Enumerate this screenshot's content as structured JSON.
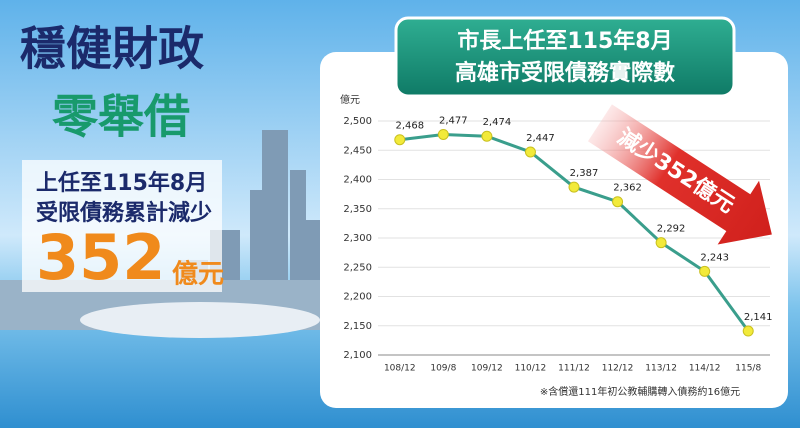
{
  "headline": {
    "line1": "穩健財政",
    "line2": "零舉借",
    "sub1": "上任至115年8月",
    "sub2": "受限債務累計減少",
    "amount": "352",
    "unit": "億元"
  },
  "chart_data": {
    "type": "line",
    "title_lines": [
      "市長上任至115年8月",
      "高雄市受限債務實際數"
    ],
    "y_label": "億元",
    "categories": [
      "108/12",
      "109/8",
      "109/12",
      "110/12",
      "111/12",
      "112/12",
      "113/12",
      "114/12",
      "115/8"
    ],
    "values": [
      2468,
      2477,
      2474,
      2447,
      2387,
      2362,
      2292,
      2243,
      2141
    ],
    "value_labels": [
      "2,468",
      "2,477",
      "2,474",
      "2,447",
      "2,387",
      "2,362",
      "2,292",
      "2,243",
      "2,141"
    ],
    "color": "#3a9e8c",
    "marker_color": "#f2ea3a",
    "ylim": [
      2100,
      2500
    ],
    "yticks": [
      {
        "value": 2100,
        "label": "2,100"
      },
      {
        "value": 2150,
        "label": "2,150"
      },
      {
        "value": 2200,
        "label": "2,200"
      },
      {
        "value": 2250,
        "label": "2,250"
      },
      {
        "value": 2300,
        "label": "2,300"
      },
      {
        "value": 2350,
        "label": "2,350"
      },
      {
        "value": 2400,
        "label": "2,400"
      },
      {
        "value": 2450,
        "label": "2,450"
      },
      {
        "value": 2500,
        "label": "2,500"
      }
    ],
    "grid": true,
    "annotation": "減少352億元",
    "footnote": "※含償還111年初公教輔購轉入債務約16億元"
  }
}
